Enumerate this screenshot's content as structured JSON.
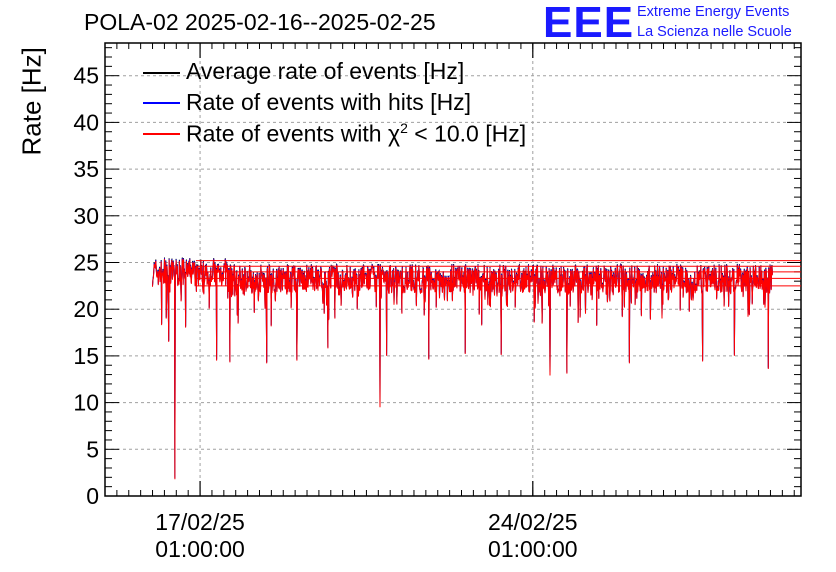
{
  "title": "POLA-02 2025-02-16--2025-02-25",
  "logo": {
    "mark": "EEE",
    "line1": "Extreme Energy Events",
    "line2": "La Scienza nelle Scuole",
    "color": "#1a1aff"
  },
  "chart_data": {
    "type": "line",
    "ylabel": "Rate [Hz]",
    "xlabel": "",
    "ylim": [
      0,
      48.5
    ],
    "yticks": [
      0,
      5,
      10,
      15,
      20,
      25,
      30,
      35,
      40,
      45
    ],
    "xticks": [
      {
        "date": "17/02/25",
        "time": "01:00:00",
        "value": 1739754000
      },
      {
        "date": "24/02/25",
        "time": "01:00:00",
        "value": 1740358800
      }
    ],
    "xlim": [
      1739581200,
      1740846300
    ],
    "data_range": [
      1739667600,
      1740794400
    ],
    "grid": true,
    "legend_position": "top-left",
    "series": [
      {
        "name": "Average rate of events [Hz]",
        "color": "#000000"
      },
      {
        "name": "Rate of events with hits [Hz]",
        "color": "#0000ff"
      },
      {
        "name": "Rate of events with χ² < 10.0 [Hz]",
        "color": "#ff0000",
        "legend_prefix": "Rate of events with χ",
        "legend_sup": "2",
        "legend_suffix": " < 10.0 [Hz]"
      }
    ],
    "typical_band": [
      21.5,
      25.0
    ],
    "mean_level": 23.2,
    "notable_minima": [
      {
        "x": 1739683800,
        "y": 18.3
      },
      {
        "x": 1739697000,
        "y": 16.5
      },
      {
        "x": 1739708400,
        "y": 1.8
      },
      {
        "x": 1739784000,
        "y": 14.5
      },
      {
        "x": 1739808000,
        "y": 14.3
      },
      {
        "x": 1739875000,
        "y": 14.2
      },
      {
        "x": 1739930000,
        "y": 14.5
      },
      {
        "x": 1739986000,
        "y": 15.8
      },
      {
        "x": 1740081000,
        "y": 9.5
      },
      {
        "x": 1740093000,
        "y": 15.0
      },
      {
        "x": 1740170000,
        "y": 14.6
      },
      {
        "x": 1740236000,
        "y": 15.2
      },
      {
        "x": 1740301000,
        "y": 15.1
      },
      {
        "x": 1740390000,
        "y": 12.9
      },
      {
        "x": 1740421000,
        "y": 13.1
      },
      {
        "x": 1740534000,
        "y": 14.2
      },
      {
        "x": 1740667000,
        "y": 14.4
      },
      {
        "x": 1740725000,
        "y": 15.0
      },
      {
        "x": 1740787000,
        "y": 13.6
      }
    ],
    "right_edge_levels": [
      25.2,
      24.6,
      24.0,
      23.3,
      22.5
    ]
  }
}
